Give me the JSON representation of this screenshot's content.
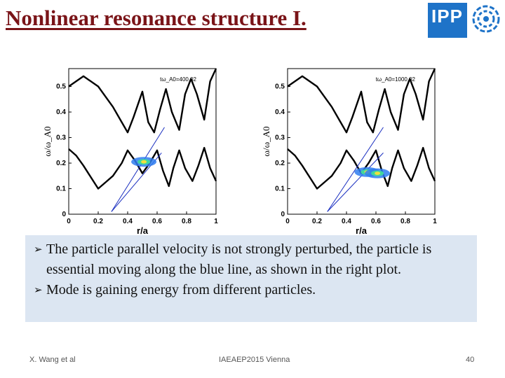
{
  "slide": {
    "title": "Nonlinear resonance structure I.",
    "logo_text": "IPP",
    "logo_color": "#1e73c8",
    "emblem_icon": "ipp-emblem-icon"
  },
  "bullets": [
    "The particle parallel velocity is not strongly perturbed, the particle is essential moving along the blue line, as shown in the right plot.",
    "Mode is gaining energy from different particles."
  ],
  "footer": {
    "author": "X. Wang et al",
    "event": "IAEAEP2015 Vienna",
    "page": "40"
  },
  "chart_data": [
    {
      "type": "line",
      "annotation": "tω_A0=400.02",
      "xlabel": "r/a",
      "ylabel": "ω/ω_A0",
      "xlim": [
        0,
        1
      ],
      "ylim": [
        0,
        0.57
      ],
      "xticks": [
        "0",
        "0.2",
        "0.4",
        "0.6",
        "0.8",
        "1"
      ],
      "yticks": [
        "0",
        "0.1",
        "0.2",
        "0.3",
        "0.4",
        "0.5"
      ],
      "series": [
        {
          "color": "#000000",
          "x": [
            0,
            0.1,
            0.2,
            0.3,
            0.36,
            0.4,
            0.44,
            0.5,
            0.54,
            0.58,
            0.62,
            0.66,
            0.7,
            0.75,
            0.79,
            0.83,
            0.87,
            0.92,
            0.96,
            1.0
          ],
          "y": [
            0.5,
            0.54,
            0.5,
            0.42,
            0.36,
            0.32,
            0.38,
            0.48,
            0.36,
            0.32,
            0.41,
            0.49,
            0.4,
            0.33,
            0.47,
            0.53,
            0.47,
            0.37,
            0.52,
            0.57
          ]
        },
        {
          "color": "#000000",
          "x": [
            0,
            0.05,
            0.1,
            0.2,
            0.26,
            0.3,
            0.36,
            0.4,
            0.45,
            0.5,
            0.55,
            0.6,
            0.64,
            0.68,
            0.71,
            0.75,
            0.79,
            0.84,
            0.88,
            0.92,
            0.96,
            1.0
          ],
          "y": [
            0.255,
            0.23,
            0.19,
            0.1,
            0.13,
            0.15,
            0.2,
            0.25,
            0.21,
            0.16,
            0.2,
            0.25,
            0.17,
            0.11,
            0.18,
            0.25,
            0.18,
            0.13,
            0.19,
            0.26,
            0.18,
            0.13
          ]
        },
        {
          "color": "#1a2fc0",
          "x": [
            0.29,
            0.65
          ],
          "y": [
            0.01,
            0.34
          ]
        },
        {
          "color": "#1a2fc0",
          "x": [
            0.29,
            0.63
          ],
          "y": [
            0.01,
            0.24
          ]
        }
      ],
      "hotspots": [
        {
          "x": 0.51,
          "y": 0.205
        }
      ]
    },
    {
      "type": "line",
      "annotation": "tω_A0=1000.02",
      "xlabel": "r/a",
      "ylabel": "ω/ω_A0",
      "xlim": [
        0,
        1
      ],
      "ylim": [
        0,
        0.57
      ],
      "xticks": [
        "0",
        "0.2",
        "0.4",
        "0.6",
        "0.8",
        "1"
      ],
      "yticks": [
        "0",
        "0.1",
        "0.2",
        "0.3",
        "0.4",
        "0.5"
      ],
      "series": [
        {
          "color": "#000000",
          "x": [
            0,
            0.1,
            0.2,
            0.3,
            0.36,
            0.4,
            0.44,
            0.5,
            0.54,
            0.58,
            0.62,
            0.66,
            0.7,
            0.75,
            0.79,
            0.83,
            0.87,
            0.92,
            0.96,
            1.0
          ],
          "y": [
            0.5,
            0.54,
            0.5,
            0.42,
            0.36,
            0.32,
            0.38,
            0.48,
            0.36,
            0.32,
            0.41,
            0.49,
            0.4,
            0.33,
            0.47,
            0.53,
            0.47,
            0.37,
            0.52,
            0.57
          ]
        },
        {
          "color": "#000000",
          "x": [
            0,
            0.05,
            0.1,
            0.2,
            0.26,
            0.3,
            0.36,
            0.4,
            0.45,
            0.5,
            0.55,
            0.6,
            0.64,
            0.68,
            0.71,
            0.75,
            0.79,
            0.84,
            0.88,
            0.92,
            0.96,
            1.0
          ],
          "y": [
            0.255,
            0.23,
            0.19,
            0.1,
            0.13,
            0.15,
            0.2,
            0.25,
            0.21,
            0.16,
            0.2,
            0.25,
            0.17,
            0.11,
            0.18,
            0.25,
            0.18,
            0.13,
            0.19,
            0.26,
            0.18,
            0.13
          ]
        },
        {
          "color": "#1a2fc0",
          "x": [
            0.27,
            0.65
          ],
          "y": [
            0.01,
            0.34
          ]
        },
        {
          "color": "#1a2fc0",
          "x": [
            0.27,
            0.65
          ],
          "y": [
            0.01,
            0.24
          ]
        }
      ],
      "hotspots": [
        {
          "x": 0.54,
          "y": 0.165
        },
        {
          "x": 0.61,
          "y": 0.16
        }
      ]
    }
  ]
}
